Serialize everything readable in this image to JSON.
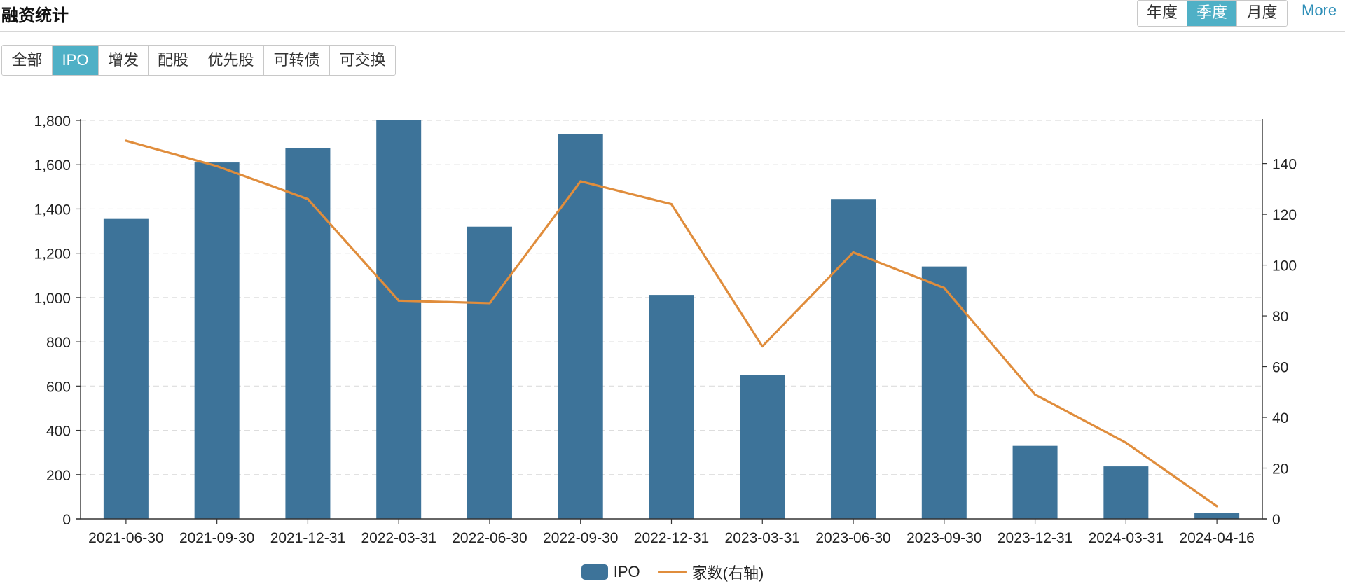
{
  "header": {
    "title": "融资统计",
    "period_tabs": [
      {
        "label": "年度",
        "active": false
      },
      {
        "label": "季度",
        "active": true
      },
      {
        "label": "月度",
        "active": false
      }
    ],
    "more_label": "More"
  },
  "filters": {
    "types": [
      {
        "label": "全部",
        "active": false
      },
      {
        "label": "IPO",
        "active": true
      },
      {
        "label": "增发",
        "active": false
      },
      {
        "label": "配股",
        "active": false
      },
      {
        "label": "优先股",
        "active": false
      },
      {
        "label": "可转债",
        "active": false
      },
      {
        "label": "可交换",
        "active": false
      }
    ]
  },
  "colors": {
    "accent": "#4fb0c6",
    "bar": "#3d7399",
    "line": "#e08d3c",
    "grid": "#dddddd"
  },
  "chart_data": {
    "type": "bar",
    "categories": [
      "2021-06-30",
      "2021-09-30",
      "2021-12-31",
      "2022-03-31",
      "2022-06-30",
      "2022-09-30",
      "2022-12-31",
      "2023-03-31",
      "2023-06-30",
      "2023-09-30",
      "2023-12-31",
      "2024-03-31",
      "2024-04-16"
    ],
    "series": [
      {
        "name": "IPO",
        "type": "bar",
        "axis": "left",
        "values": [
          1355,
          1610,
          1675,
          1800,
          1320,
          1738,
          1012,
          650,
          1445,
          1140,
          330,
          237,
          28
        ]
      },
      {
        "name": "家数(右轴)",
        "type": "line",
        "axis": "right",
        "values": [
          149,
          139,
          126,
          86,
          85,
          133,
          124,
          68,
          105,
          91,
          49,
          30,
          5
        ]
      }
    ],
    "y_left": {
      "min": 0,
      "max": 1800,
      "ticks": [
        0,
        200,
        400,
        600,
        800,
        1000,
        1200,
        1400,
        1600,
        1800
      ],
      "tick_labels": [
        "0",
        "200",
        "400",
        "600",
        "800",
        "1,000",
        "1,200",
        "1,400",
        "1,600",
        "1,800"
      ]
    },
    "y_right": {
      "min": 0,
      "max": 157,
      "ticks": [
        0,
        20,
        40,
        60,
        80,
        100,
        120,
        140
      ],
      "tick_labels": [
        "0",
        "20",
        "40",
        "60",
        "80",
        "100",
        "120",
        "140"
      ]
    },
    "grid": true,
    "legend": "bottom-center"
  }
}
